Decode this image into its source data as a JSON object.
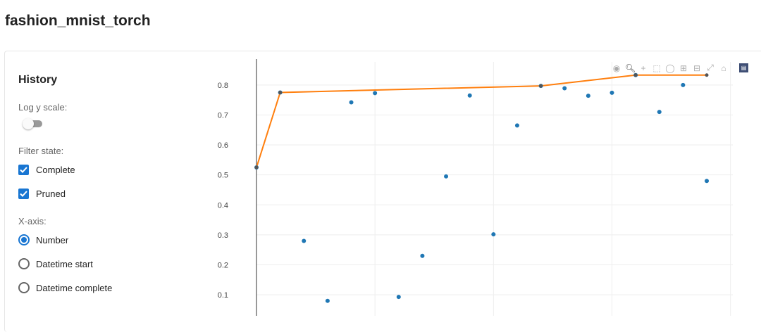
{
  "page_title": "fashion_mnist_torch",
  "sidebar": {
    "heading": "History",
    "log_y_label": "Log y scale:",
    "log_y_enabled": false,
    "filter_label": "Filter state:",
    "filters": [
      {
        "label": "Complete",
        "checked": true
      },
      {
        "label": "Pruned",
        "checked": true
      }
    ],
    "xaxis_label": "X-axis:",
    "xaxis_options": [
      {
        "label": "Number",
        "selected": true
      },
      {
        "label": "Datetime start",
        "selected": false
      },
      {
        "label": "Datetime complete",
        "selected": false
      }
    ]
  },
  "toolbar": [
    "camera-icon",
    "zoom-icon",
    "pan-icon",
    "box-select-icon",
    "lasso-icon",
    "zoom-in-icon",
    "zoom-out-icon",
    "autoscale-icon",
    "home-icon",
    "plotly-logo"
  ],
  "colors": {
    "objective": "#1f77b4",
    "best": "#ff7f0e",
    "accent": "#1976d2"
  },
  "chart_data": {
    "type": "scatter",
    "xlim": [
      0,
      20.1
    ],
    "ylim": [
      0.03,
      0.877
    ],
    "yticks": [
      0.1,
      0.2,
      0.3,
      0.4,
      0.5,
      0.6,
      0.7,
      0.8
    ],
    "xgrid": [
      5,
      10,
      15,
      20
    ],
    "grid": true,
    "series": [
      {
        "type": "scatter",
        "x": [
          0,
          1,
          2,
          3,
          4,
          5,
          6,
          7,
          8,
          9,
          10,
          11,
          12,
          13,
          14,
          15,
          16,
          17,
          18,
          19
        ],
        "y": [
          0.525,
          0.775,
          0.28,
          0.08,
          0.742,
          0.773,
          0.093,
          0.23,
          0.495,
          0.765,
          0.302,
          0.665,
          0.797,
          0.789,
          0.764,
          0.774,
          0.833,
          0.71,
          0.8,
          0.48
        ]
      },
      {
        "type": "line",
        "x": [
          0,
          1,
          12,
          16,
          19
        ],
        "y": [
          0.525,
          0.775,
          0.797,
          0.833,
          0.833
        ]
      }
    ]
  }
}
